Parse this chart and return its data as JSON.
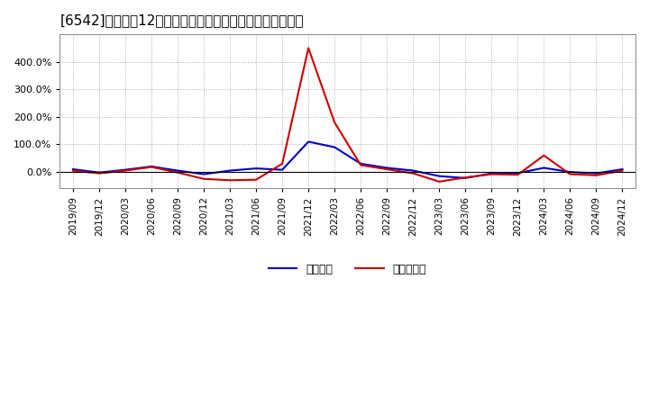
{
  "title": "[6542]　利益だ12か月移動合計の対前年同期増減率の推移",
  "x_labels": [
    "2019/09",
    "2019/12",
    "2020/03",
    "2020/06",
    "2020/09",
    "2020/12",
    "2021/03",
    "2021/06",
    "2021/09",
    "2021/12",
    "2022/03",
    "2022/06",
    "2022/09",
    "2022/12",
    "2023/03",
    "2023/06",
    "2023/09",
    "2023/12",
    "2024/03",
    "2024/06",
    "2024/09",
    "2024/12"
  ],
  "blue_data": [
    10,
    -2,
    8,
    20,
    5,
    -8,
    5,
    13,
    8,
    110,
    90,
    30,
    15,
    5,
    -15,
    -22,
    -5,
    -4,
    15,
    0,
    -5,
    10
  ],
  "red_data": [
    5,
    -5,
    5,
    18,
    -2,
    -25,
    -30,
    -28,
    30,
    450,
    180,
    25,
    10,
    -5,
    -35,
    -20,
    -8,
    -10,
    60,
    -8,
    -12,
    5
  ],
  "blue_color": "#0000cc",
  "red_color": "#cc0000",
  "bg_color": "#ffffff",
  "plot_bg_color": "#ffffff",
  "grid_color": "#aaaaaa",
  "ylim_min": -60,
  "ylim_max": 500,
  "ytick_values": [
    0,
    100,
    200,
    300,
    400
  ],
  "legend_blue": "経常利益",
  "legend_red": "当期純利益",
  "line_width": 1.5,
  "title_fontsize": 11,
  "tick_fontsize": 7.5,
  "ytick_fontsize": 8
}
